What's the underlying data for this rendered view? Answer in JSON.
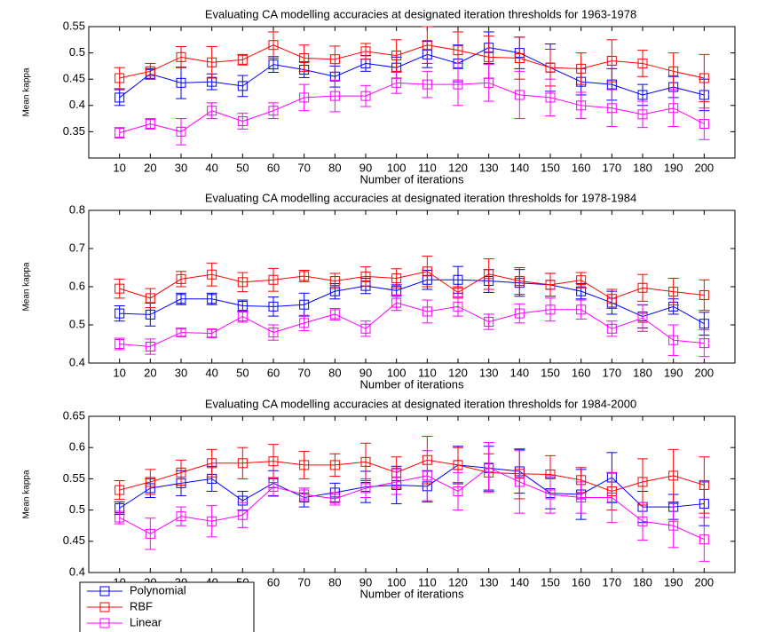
{
  "chart_data": [
    {
      "type": "line",
      "title": "Evaluating CA modelling accuracies at designated iteration thresholds for 1963-1978",
      "xlabel": "Number of iterations",
      "ylabel": "Mean kappa",
      "x": [
        10,
        20,
        30,
        40,
        50,
        60,
        70,
        80,
        90,
        100,
        110,
        120,
        130,
        140,
        150,
        160,
        170,
        180,
        190,
        200
      ],
      "xlim": [
        0,
        210
      ],
      "xticks": [
        10,
        20,
        30,
        40,
        50,
        60,
        70,
        80,
        90,
        100,
        110,
        120,
        130,
        140,
        150,
        160,
        170,
        180,
        190,
        200
      ],
      "ylim": [
        0.3,
        0.55
      ],
      "yticks": [
        0.35,
        0.4,
        0.45,
        0.5,
        0.55
      ],
      "series": [
        {
          "color": "#0000ff",
          "values": [
            0.415,
            0.46,
            0.443,
            0.445,
            0.437,
            0.478,
            0.468,
            0.455,
            0.48,
            0.472,
            0.497,
            0.48,
            0.51,
            0.5,
            0.472,
            0.445,
            0.44,
            0.42,
            0.435,
            0.42
          ],
          "errors": [
            0.015,
            0.01,
            0.03,
            0.015,
            0.02,
            0.015,
            0.015,
            0.02,
            0.015,
            0.02,
            0.025,
            0.035,
            0.03,
            0.03,
            0.045,
            0.025,
            0.03,
            0.02,
            0.02,
            0.03
          ]
        },
        {
          "color": "#ff0000",
          "values": [
            0.452,
            0.465,
            0.492,
            0.482,
            0.487,
            0.515,
            0.49,
            0.488,
            0.503,
            0.495,
            0.515,
            0.505,
            0.492,
            0.49,
            0.472,
            0.47,
            0.485,
            0.48,
            0.465,
            0.452
          ],
          "errors": [
            0.02,
            0.015,
            0.02,
            0.03,
            0.01,
            0.025,
            0.025,
            0.025,
            0.015,
            0.03,
            0.035,
            0.035,
            0.04,
            0.04,
            0.035,
            0.03,
            0.04,
            0.025,
            0.035,
            0.045
          ]
        },
        {
          "color": "#ff00ff",
          "values": [
            0.348,
            0.365,
            0.35,
            0.39,
            0.37,
            0.39,
            0.415,
            0.418,
            0.418,
            0.443,
            0.44,
            0.44,
            0.443,
            0.42,
            0.415,
            0.4,
            0.395,
            0.383,
            0.395,
            0.365
          ],
          "errors": [
            0.01,
            0.01,
            0.025,
            0.015,
            0.015,
            0.015,
            0.025,
            0.03,
            0.02,
            0.02,
            0.025,
            0.04,
            0.035,
            0.045,
            0.035,
            0.025,
            0.035,
            0.025,
            0.035,
            0.03
          ]
        }
      ]
    },
    {
      "type": "line",
      "title": "Evaluating CA modelling accuracies at designated iteration thresholds for 1978-1984",
      "xlabel": "Number of iterations",
      "ylabel": "Mean kappa",
      "x": [
        10,
        20,
        30,
        40,
        50,
        60,
        70,
        80,
        90,
        100,
        110,
        120,
        130,
        140,
        150,
        160,
        170,
        180,
        190,
        200
      ],
      "xlim": [
        0,
        210
      ],
      "xticks": [
        10,
        20,
        30,
        40,
        50,
        60,
        70,
        80,
        90,
        100,
        110,
        120,
        130,
        140,
        150,
        160,
        170,
        180,
        190,
        200
      ],
      "ylim": [
        0.4,
        0.8
      ],
      "yticks": [
        0.4,
        0.5,
        0.6,
        0.7,
        0.8
      ],
      "series": [
        {
          "color": "#0000ff",
          "values": [
            0.53,
            0.527,
            0.568,
            0.568,
            0.55,
            0.548,
            0.553,
            0.588,
            0.602,
            0.59,
            0.618,
            0.618,
            0.615,
            0.61,
            0.605,
            0.588,
            0.558,
            0.522,
            0.548,
            0.503
          ],
          "errors": [
            0.02,
            0.03,
            0.015,
            0.015,
            0.015,
            0.025,
            0.03,
            0.02,
            0.02,
            0.015,
            0.025,
            0.035,
            0.03,
            0.035,
            0.03,
            0.02,
            0.03,
            0.03,
            0.02,
            0.03
          ]
        },
        {
          "color": "#ff0000",
          "values": [
            0.595,
            0.57,
            0.62,
            0.632,
            0.612,
            0.618,
            0.628,
            0.615,
            0.627,
            0.622,
            0.64,
            0.585,
            0.633,
            0.615,
            0.605,
            0.617,
            0.568,
            0.597,
            0.587,
            0.578
          ],
          "errors": [
            0.025,
            0.025,
            0.02,
            0.03,
            0.025,
            0.03,
            0.015,
            0.02,
            0.025,
            0.025,
            0.04,
            0.015,
            0.04,
            0.035,
            0.03,
            0.02,
            0.025,
            0.035,
            0.035,
            0.04
          ]
        },
        {
          "color": "#ff00ff",
          "values": [
            0.45,
            0.443,
            0.48,
            0.478,
            0.522,
            0.48,
            0.505,
            0.528,
            0.49,
            0.558,
            0.535,
            0.548,
            0.508,
            0.53,
            0.54,
            0.54,
            0.49,
            0.518,
            0.46,
            0.452
          ],
          "errors": [
            0.015,
            0.02,
            0.01,
            0.01,
            0.015,
            0.02,
            0.02,
            0.015,
            0.02,
            0.02,
            0.03,
            0.025,
            0.02,
            0.025,
            0.03,
            0.025,
            0.02,
            0.035,
            0.04,
            0.035
          ]
        }
      ]
    },
    {
      "type": "line",
      "title": "Evaluating CA modelling accuracies at designated iteration thresholds for 1984-2000",
      "xlabel": "Number of iterations",
      "ylabel": "Mean kappa",
      "x": [
        10,
        20,
        30,
        40,
        50,
        60,
        70,
        80,
        90,
        100,
        110,
        120,
        130,
        140,
        150,
        160,
        170,
        180,
        190,
        200
      ],
      "xlim": [
        0,
        210
      ],
      "xticks": [
        10,
        20,
        30,
        40,
        50,
        60,
        70,
        80,
        90,
        100,
        110,
        120,
        130,
        140,
        150,
        160,
        170,
        180,
        190,
        200
      ],
      "ylim": [
        0.4,
        0.65
      ],
      "yticks": [
        0.4,
        0.45,
        0.5,
        0.55,
        0.6,
        0.65
      ],
      "legend": "lower left outside",
      "series": [
        {
          "name": "Polynomial",
          "color": "#0000ff",
          "values": [
            0.503,
            0.535,
            0.543,
            0.55,
            0.515,
            0.543,
            0.52,
            0.528,
            0.537,
            0.54,
            0.538,
            0.572,
            0.567,
            0.562,
            0.527,
            0.525,
            0.552,
            0.505,
            0.505,
            0.51
          ],
          "errors": [
            0.01,
            0.015,
            0.02,
            0.02,
            0.015,
            0.02,
            0.015,
            0.015,
            0.025,
            0.03,
            0.025,
            0.03,
            0.035,
            0.035,
            0.025,
            0.04,
            0.04,
            0.025,
            0.02,
            0.035
          ]
        },
        {
          "name": "RBF",
          "color": "#ff0000",
          "values": [
            0.532,
            0.545,
            0.56,
            0.575,
            0.575,
            0.578,
            0.572,
            0.572,
            0.577,
            0.56,
            0.58,
            0.572,
            0.56,
            0.558,
            0.557,
            0.548,
            0.53,
            0.545,
            0.555,
            0.54
          ],
          "errors": [
            0.015,
            0.02,
            0.02,
            0.022,
            0.025,
            0.027,
            0.022,
            0.018,
            0.03,
            0.025,
            0.038,
            0.028,
            0.03,
            0.04,
            0.03,
            0.02,
            0.03,
            0.037,
            0.042,
            0.045
          ]
        },
        {
          "name": "Linear",
          "color": "#ff00ff",
          "values": [
            0.488,
            0.462,
            0.49,
            0.482,
            0.492,
            0.537,
            0.525,
            0.518,
            0.535,
            0.545,
            0.555,
            0.53,
            0.568,
            0.545,
            0.525,
            0.52,
            0.52,
            0.482,
            0.475,
            0.453
          ],
          "errors": [
            0.01,
            0.025,
            0.015,
            0.025,
            0.02,
            0.015,
            0.01,
            0.01,
            0.015,
            0.02,
            0.04,
            0.03,
            0.04,
            0.05,
            0.03,
            0.025,
            0.04,
            0.03,
            0.035,
            0.035
          ]
        }
      ]
    }
  ]
}
